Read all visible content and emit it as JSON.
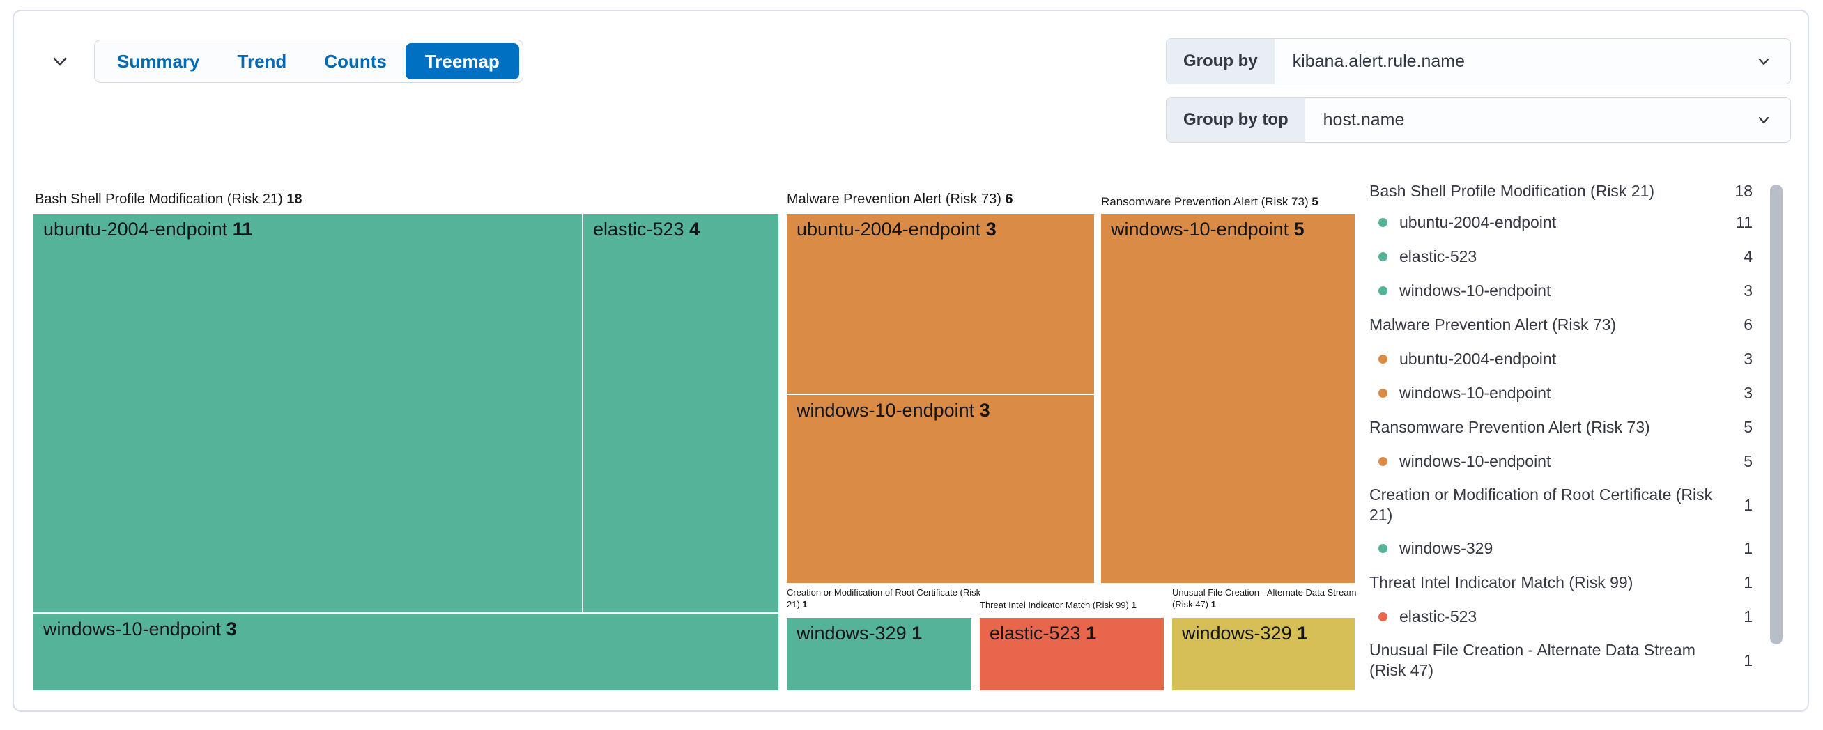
{
  "toolbar": {
    "view_tabs": [
      {
        "label": "Summary",
        "selected": false
      },
      {
        "label": "Trend",
        "selected": false
      },
      {
        "label": "Counts",
        "selected": false
      },
      {
        "label": "Treemap",
        "selected": true
      }
    ]
  },
  "controls": {
    "group_by": {
      "label": "Group by",
      "value": "kibana.alert.rule.name"
    },
    "group_by_top": {
      "label": "Group by top",
      "value": "host.name"
    }
  },
  "palette": {
    "green": "#54B399",
    "orange": "#DA8B45",
    "red": "#E7664C",
    "yellow": "#D6BF57",
    "selected_tab_blue": "#0071C2",
    "tab_text_blue": "#006BB4",
    "text": "#343741"
  },
  "treemap": {
    "groups": [
      {
        "header": "Bash Shell Profile Modification (Risk 21)",
        "count": "18",
        "cells": [
          {
            "name": "ubuntu-2004-endpoint",
            "value": "11"
          },
          {
            "name": "elastic-523",
            "value": "4"
          },
          {
            "name": "windows-10-endpoint",
            "value": "3"
          }
        ]
      },
      {
        "header": "Malware Prevention Alert (Risk 73)",
        "count": "6",
        "cells": [
          {
            "name": "ubuntu-2004-endpoint",
            "value": "3"
          },
          {
            "name": "windows-10-endpoint",
            "value": "3"
          }
        ]
      },
      {
        "header": "Ransomware Prevention Alert (Risk 73)",
        "count": "5",
        "cells": [
          {
            "name": "windows-10-endpoint",
            "value": "5"
          }
        ]
      },
      {
        "header": "Creation or Modification of Root Certificate (Risk 21)",
        "count": "1",
        "cells": [
          {
            "name": "windows-329",
            "value": "1"
          }
        ]
      },
      {
        "header": "Threat Intel Indicator Match (Risk 99)",
        "count": "1",
        "cells": [
          {
            "name": "elastic-523",
            "value": "1"
          }
        ]
      },
      {
        "header": "Unusual File Creation - Alternate Data Stream (Risk 47)",
        "count": "1",
        "cells": [
          {
            "name": "windows-329",
            "value": "1"
          }
        ]
      }
    ]
  },
  "legend": {
    "rows": [
      {
        "type": "title",
        "label": "Bash Shell Profile Modification (Risk 21)",
        "value": "18"
      },
      {
        "type": "item",
        "color": "green",
        "label": "ubuntu-2004-endpoint",
        "value": "11"
      },
      {
        "type": "item",
        "color": "green",
        "label": "elastic-523",
        "value": "4"
      },
      {
        "type": "item",
        "color": "green",
        "label": "windows-10-endpoint",
        "value": "3"
      },
      {
        "type": "title",
        "label": "Malware Prevention Alert (Risk 73)",
        "value": "6"
      },
      {
        "type": "item",
        "color": "orange",
        "label": "ubuntu-2004-endpoint",
        "value": "3"
      },
      {
        "type": "item",
        "color": "orange",
        "label": "windows-10-endpoint",
        "value": "3"
      },
      {
        "type": "title",
        "label": "Ransomware Prevention Alert (Risk 73)",
        "value": "5"
      },
      {
        "type": "item",
        "color": "orange",
        "label": "windows-10-endpoint",
        "value": "5"
      },
      {
        "type": "title",
        "label": "Creation or Modification of Root Certificate (Risk 21)",
        "value": "1",
        "two_line": true
      },
      {
        "type": "item",
        "color": "green",
        "label": "windows-329",
        "value": "1"
      },
      {
        "type": "title",
        "label": "Threat Intel Indicator Match (Risk 99)",
        "value": "1"
      },
      {
        "type": "item",
        "color": "red",
        "label": "elastic-523",
        "value": "1"
      },
      {
        "type": "title",
        "label": "Unusual File Creation - Alternate Data Stream (Risk 47)",
        "value": "1",
        "two_line": true
      }
    ]
  },
  "chart_data": {
    "type": "treemap",
    "legend_position": "right",
    "groups": [
      {
        "name": "Bash Shell Profile Modification (Risk 21)",
        "value": 18,
        "color": "#54B399",
        "children": [
          {
            "name": "ubuntu-2004-endpoint",
            "value": 11
          },
          {
            "name": "elastic-523",
            "value": 4
          },
          {
            "name": "windows-10-endpoint",
            "value": 3
          }
        ]
      },
      {
        "name": "Malware Prevention Alert (Risk 73)",
        "value": 6,
        "color": "#DA8B45",
        "children": [
          {
            "name": "ubuntu-2004-endpoint",
            "value": 3
          },
          {
            "name": "windows-10-endpoint",
            "value": 3
          }
        ]
      },
      {
        "name": "Ransomware Prevention Alert (Risk 73)",
        "value": 5,
        "color": "#DA8B45",
        "children": [
          {
            "name": "windows-10-endpoint",
            "value": 5
          }
        ]
      },
      {
        "name": "Creation or Modification of Root Certificate (Risk 21)",
        "value": 1,
        "color": "#54B399",
        "children": [
          {
            "name": "windows-329",
            "value": 1
          }
        ]
      },
      {
        "name": "Threat Intel Indicator Match (Risk 99)",
        "value": 1,
        "color": "#E7664C",
        "children": [
          {
            "name": "elastic-523",
            "value": 1
          }
        ]
      },
      {
        "name": "Unusual File Creation - Alternate Data Stream (Risk 47)",
        "value": 1,
        "color": "#D6BF57",
        "children": [
          {
            "name": "windows-329",
            "value": 1
          }
        ]
      }
    ]
  }
}
